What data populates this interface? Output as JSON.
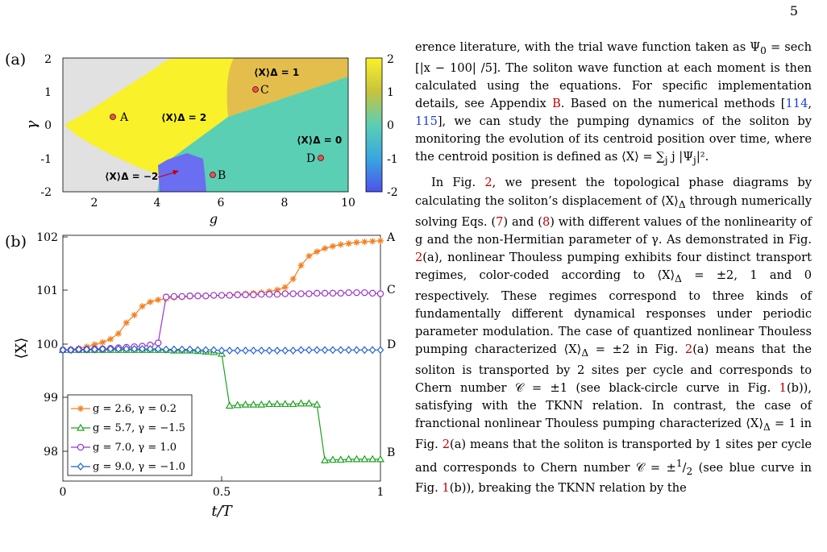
{
  "page": {
    "number": "5"
  },
  "figure": {
    "panel_a": {
      "label": "(a)",
      "xlabel": "g",
      "ylabel": "γ",
      "x_ticks": [
        "2",
        "4",
        "6",
        "8",
        "10"
      ],
      "y_ticks": [
        "2",
        "1",
        "0",
        "-1",
        "-2"
      ],
      "colorbar_ticks": [
        "2",
        "1",
        "0",
        "-1",
        "-2"
      ],
      "region_labels": [
        "⟨X⟩Δ = 1",
        "⟨X⟩Δ = 2",
        "⟨X⟩Δ = 0",
        "⟨X⟩Δ = −2"
      ],
      "points": [
        {
          "label": "A",
          "g": 2.6,
          "gamma": 0.2
        },
        {
          "label": "B",
          "g": 5.7,
          "gamma": -1.5
        },
        {
          "label": "C",
          "g": 7.0,
          "gamma": 1.0
        },
        {
          "label": "D",
          "g": 9.0,
          "gamma": -1.0
        }
      ],
      "colors": {
        "q2": "#f9f12a",
        "q1": "#e3be4c",
        "q0": "#5bcfb4",
        "qm2": "#6a6ef0",
        "none": "#e1e1e1"
      }
    },
    "panel_b": {
      "label": "(b)",
      "xlabel": "t/T",
      "ylabel": "⟨X⟩",
      "x_ticks": [
        "0",
        "0.5",
        "1"
      ],
      "y_ticks": [
        "102",
        "101",
        "100",
        "99",
        "98"
      ],
      "legend": [
        "g = 2.6, γ =  0.2",
        "g = 5.7, γ = −1.5",
        "g = 7.0, γ =  1.0",
        "g = 9.0, γ = −1.0"
      ],
      "end_labels": [
        "A",
        "C",
        "D",
        "B"
      ]
    }
  },
  "chart_data": [
    {
      "type": "heatmap",
      "xlabel": "g",
      "ylabel": "γ",
      "xlim": [
        1,
        10
      ],
      "ylim": [
        -2,
        2
      ],
      "colorbar_range": [
        -2,
        2
      ],
      "regions": [
        {
          "value": 2,
          "label": "⟨X⟩Δ = 2"
        },
        {
          "value": 1,
          "label": "⟨X⟩Δ = 1"
        },
        {
          "value": 0,
          "label": "⟨X⟩Δ = 0"
        },
        {
          "value": -2,
          "label": "⟨X⟩Δ = −2"
        }
      ]
    },
    {
      "type": "line",
      "xlabel": "t/T",
      "ylabel": "⟨X⟩",
      "xlim": [
        0,
        1
      ],
      "ylim": [
        97.6,
        102.1
      ],
      "series": [
        {
          "name": "g = 2.6, γ =  0.2",
          "color": "#f57f1f",
          "marker": "star",
          "end_label": "A",
          "x": [
            0,
            0.025,
            0.05,
            0.075,
            0.1,
            0.125,
            0.15,
            0.175,
            0.2,
            0.225,
            0.25,
            0.275,
            0.3,
            0.325,
            0.35,
            0.375,
            0.4,
            0.425,
            0.45,
            0.475,
            0.5,
            0.525,
            0.55,
            0.575,
            0.6,
            0.625,
            0.65,
            0.675,
            0.7,
            0.725,
            0.75,
            0.775,
            0.8,
            0.825,
            0.85,
            0.875,
            0.9,
            0.925,
            0.95,
            0.975,
            1.0
          ],
          "y": [
            100.0,
            100.01,
            100.03,
            100.06,
            100.1,
            100.14,
            100.2,
            100.3,
            100.5,
            100.64,
            100.8,
            100.88,
            100.92,
            100.94,
            100.96,
            100.97,
            100.98,
            100.99,
            100.99,
            101.0,
            101.0,
            101.01,
            101.02,
            101.03,
            101.04,
            101.05,
            101.07,
            101.1,
            101.15,
            101.3,
            101.55,
            101.72,
            101.8,
            101.86,
            101.9,
            101.93,
            101.95,
            101.97,
            101.98,
            101.99,
            102.0
          ]
        },
        {
          "name": "g = 5.7, γ = −1.5",
          "color": "#1ca11c",
          "marker": "triangle",
          "end_label": "B",
          "x": [
            0,
            0.025,
            0.05,
            0.075,
            0.1,
            0.125,
            0.15,
            0.175,
            0.2,
            0.225,
            0.25,
            0.275,
            0.3,
            0.325,
            0.35,
            0.375,
            0.4,
            0.425,
            0.45,
            0.475,
            0.5,
            0.525,
            0.55,
            0.575,
            0.6,
            0.625,
            0.65,
            0.675,
            0.7,
            0.725,
            0.75,
            0.775,
            0.8,
            0.825,
            0.85,
            0.875,
            0.9,
            0.925,
            0.95,
            0.975,
            1.0
          ],
          "y": [
            100.0,
            100.0,
            100.0,
            100.0,
            100.0,
            100.0,
            100.0,
            100.0,
            100.0,
            100.0,
            100.0,
            100.0,
            100.0,
            100.0,
            99.99,
            99.99,
            99.99,
            99.98,
            99.97,
            99.96,
            99.93,
            98.98,
            98.99,
            99.0,
            99.0,
            99.0,
            99.01,
            99.01,
            99.01,
            99.01,
            99.02,
            99.02,
            99.0,
            97.98,
            97.99,
            97.99,
            98.0,
            98.0,
            98.0,
            98.0,
            98.0
          ]
        },
        {
          "name": "g = 7.0, γ =  1.0",
          "color": "#9b35c9",
          "marker": "circle",
          "end_label": "C",
          "x": [
            0,
            0.025,
            0.05,
            0.075,
            0.1,
            0.125,
            0.15,
            0.175,
            0.2,
            0.225,
            0.25,
            0.275,
            0.3,
            0.325,
            0.35,
            0.375,
            0.4,
            0.425,
            0.45,
            0.475,
            0.5,
            0.525,
            0.55,
            0.575,
            0.6,
            0.625,
            0.65,
            0.675,
            0.7,
            0.725,
            0.75,
            0.775,
            0.8,
            0.825,
            0.85,
            0.875,
            0.9,
            0.925,
            0.95,
            0.975,
            1.0
          ],
          "y": [
            100.0,
            100.0,
            100.01,
            100.01,
            100.02,
            100.02,
            100.03,
            100.04,
            100.05,
            100.06,
            100.07,
            100.09,
            100.13,
            100.97,
            100.98,
            100.98,
            100.99,
            100.99,
            100.99,
            101.0,
            101.0,
            101.0,
            101.01,
            101.01,
            101.01,
            101.02,
            101.02,
            101.02,
            101.03,
            101.03,
            101.03,
            101.03,
            101.04,
            101.04,
            101.04,
            101.04,
            101.05,
            101.05,
            101.05,
            101.04,
            101.03
          ]
        },
        {
          "name": "g = 9.0, γ = −1.0",
          "color": "#1f5fd6",
          "marker": "diamond",
          "end_label": "D",
          "x": [
            0,
            0.025,
            0.05,
            0.075,
            0.1,
            0.125,
            0.15,
            0.175,
            0.2,
            0.225,
            0.25,
            0.275,
            0.3,
            0.325,
            0.35,
            0.375,
            0.4,
            0.425,
            0.45,
            0.475,
            0.5,
            0.525,
            0.55,
            0.575,
            0.6,
            0.625,
            0.65,
            0.675,
            0.7,
            0.725,
            0.75,
            0.775,
            0.8,
            0.825,
            0.85,
            0.875,
            0.9,
            0.925,
            0.95,
            0.975,
            1.0
          ],
          "y": [
            100.0,
            100.0,
            100.01,
            100.01,
            100.01,
            100.02,
            100.02,
            100.02,
            100.02,
            100.02,
            100.02,
            100.02,
            100.02,
            100.01,
            100.01,
            100.01,
            100.01,
            100.0,
            100.0,
            100.0,
            99.99,
            99.99,
            99.99,
            99.99,
            99.99,
            99.99,
            99.99,
            99.99,
            99.99,
            99.99,
            100.0,
            100.0,
            100.0,
            100.0,
            100.0,
            100.0,
            100.0,
            100.0,
            100.0,
            100.0,
            100.0
          ]
        }
      ]
    }
  ],
  "text": {
    "p1": {
      "s1": "erence literature, with the trial wave function taken as Ψ",
      "s2": " = sech [|x − 100| /5].  The soliton wave function at each moment is then calculated using the equations. For specific implementation details, see Appendix ",
      "ref_app": "B",
      "s3": ". Based on the numerical methods [",
      "cite1": "114",
      "s4": ", ",
      "cite2": "115",
      "s5": "], we can study the pumping dynamics of the soliton by monitoring the evolution of its centroid position over time, where the centroid position is defined as ⟨X⟩ = ∑",
      "s6": " j |Ψ",
      "s7": "|²."
    },
    "p2": {
      "s1": "In Fig. ",
      "r_fig2": "2",
      "s2": ", we present the topological phase diagrams by calculating the soliton’s displacement of ⟨X⟩",
      "s3": " through numerically solving Eqs. (",
      "r_eq7": "7",
      "s4": ") and (",
      "r_eq8": "8",
      "s5": ") with different values of the nonlinearity of g and the non-Hermitian parameter of γ.  As demonstrated in Fig. ",
      "r_fig2a": "2",
      "s6": "(a), nonlinear Thouless pumping exhibits four distinct transport regimes, color-coded according to ⟨X⟩",
      "s7": " = ±2, 1 and 0 respectively. These regimes correspond to three kinds of fundamentally different dynamical responses under periodic parameter modulation.  The case of quantized nonlinear Thouless pumping characterized ⟨X⟩",
      "s8": " = ±2 in Fig. ",
      "r_fig2b": "2",
      "s9": "(a) means that the soliton is transported by 2 sites per cycle and corresponds to Chern number 𝒞 = ±1 (see black-circle curve in Fig. ",
      "r_fig1": "1",
      "s10": "(b)), satisfying with the TKNN relation.  In contrast, the case of franctional nonlinear Thouless pumping characterized ⟨X⟩",
      "s11": " = 1 in Fig. ",
      "r_fig2c": "2",
      "s12": "(a) means that the soliton is transported by 1 sites per cycle and corresponds to Chern number 𝒞 = ±",
      "half_num": "1",
      "half_den": "2",
      "s13": " (see blue curve in Fig. ",
      "r_fig1b": "1",
      "s14": "(b)), breaking the TKNN relation by the",
      "sub_0": "0",
      "sub_j": "j",
      "sub_delta": "Δ"
    }
  }
}
